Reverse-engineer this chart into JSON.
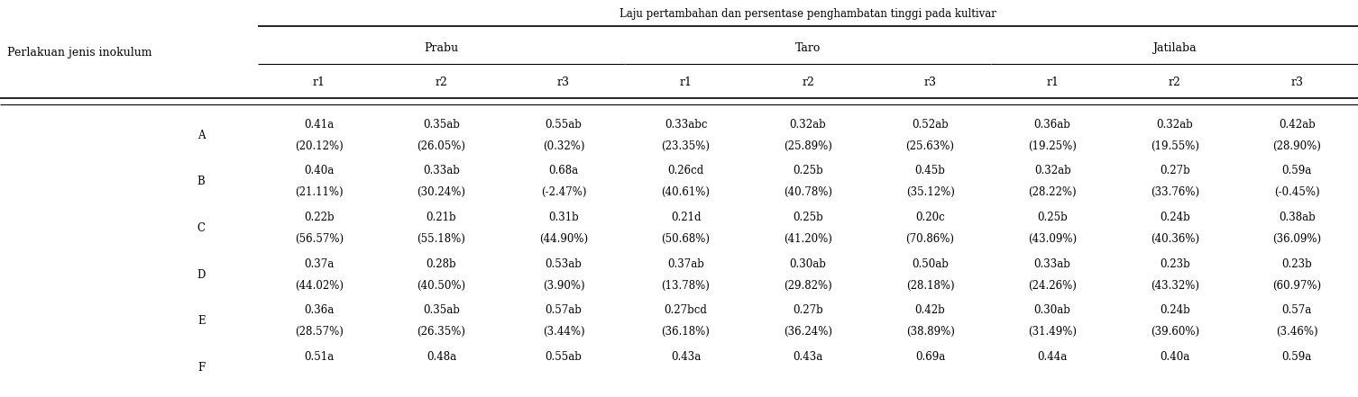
{
  "title": "Laju pertambahan dan persentase penghambatan tinggi pada kultivar",
  "col_header_row1": "Perlakuan jenis inokulum",
  "cultivars": [
    "Prabu",
    "Taro",
    "Jatilaba"
  ],
  "reps": [
    "r1",
    "r2",
    "r3"
  ],
  "treatments": [
    "A",
    "B",
    "C",
    "D",
    "E",
    "F"
  ],
  "data": {
    "A": {
      "Prabu": [
        [
          "0.41a",
          "(20.12%)"
        ],
        [
          "0.35ab",
          "(26.05%)"
        ],
        [
          "0.55ab",
          "(0.32%)"
        ]
      ],
      "Taro": [
        [
          "0.33abc",
          "(23.35%)"
        ],
        [
          "0.32ab",
          "(25.89%)"
        ],
        [
          "0.52ab",
          "(25.63%)"
        ]
      ],
      "Jatilaba": [
        [
          "0.36ab",
          "(19.25%)"
        ],
        [
          "0.32ab",
          "(19.55%)"
        ],
        [
          "0.42ab",
          "(28.90%)"
        ]
      ]
    },
    "B": {
      "Prabu": [
        [
          "0.40a",
          "(21.11%)"
        ],
        [
          "0.33ab",
          "(30.24%)"
        ],
        [
          "0.68a",
          "(-2.47%)"
        ]
      ],
      "Taro": [
        [
          "0.26cd",
          "(40.61%)"
        ],
        [
          "0.25b",
          "(40.78%)"
        ],
        [
          "0.45b",
          "(35.12%)"
        ]
      ],
      "Jatilaba": [
        [
          "0.32ab",
          "(28.22%)"
        ],
        [
          "0.27b",
          "(33.76%)"
        ],
        [
          "0.59a",
          "(-0.45%)"
        ]
      ]
    },
    "C": {
      "Prabu": [
        [
          "0.22b",
          "(56.57%)"
        ],
        [
          "0.21b",
          "(55.18%)"
        ],
        [
          "0.31b",
          "(44.90%)"
        ]
      ],
      "Taro": [
        [
          "0.21d",
          "(50.68%)"
        ],
        [
          "0.25b",
          "(41.20%)"
        ],
        [
          "0.20c",
          "(70.86%)"
        ]
      ],
      "Jatilaba": [
        [
          "0.25b",
          "(43.09%)"
        ],
        [
          "0.24b",
          "(40.36%)"
        ],
        [
          "0.38ab",
          "(36.09%)"
        ]
      ]
    },
    "D": {
      "Prabu": [
        [
          "0.37a",
          "(44.02%)"
        ],
        [
          "0.28b",
          "(40.50%)"
        ],
        [
          "0.53ab",
          "(3.90%)"
        ]
      ],
      "Taro": [
        [
          "0.37ab",
          "(13.78%)"
        ],
        [
          "0.30ab",
          "(29.82%)"
        ],
        [
          "0.50ab",
          "(28.18%)"
        ]
      ],
      "Jatilaba": [
        [
          "0.33ab",
          "(24.26%)"
        ],
        [
          "0.23b",
          "(43.32%)"
        ],
        [
          "0.23b",
          "(60.97%)"
        ]
      ]
    },
    "E": {
      "Prabu": [
        [
          "0.36a",
          "(28.57%)"
        ],
        [
          "0.35ab",
          "(26.35%)"
        ],
        [
          "0.57ab",
          "(3.44%)"
        ]
      ],
      "Taro": [
        [
          "0.27bcd",
          "(36.18%)"
        ],
        [
          "0.27b",
          "(36.24%)"
        ],
        [
          "0.42b",
          "(38.89%)"
        ]
      ],
      "Jatilaba": [
        [
          "0.30ab",
          "(31.49%)"
        ],
        [
          "0.24b",
          "(39.60%)"
        ],
        [
          "0.57a",
          "(3.46%)"
        ]
      ]
    },
    "F": {
      "Prabu": [
        [
          "0.51a",
          ""
        ],
        [
          "0.48a",
          ""
        ],
        [
          "0.55ab",
          ""
        ]
      ],
      "Taro": [
        [
          "0.43a",
          ""
        ],
        [
          "0.43a",
          ""
        ],
        [
          "0.69a",
          ""
        ]
      ],
      "Jatilaba": [
        [
          "0.44a",
          ""
        ],
        [
          "0.40a",
          ""
        ],
        [
          "0.59a",
          ""
        ]
      ]
    }
  },
  "figsize": [
    15.06,
    4.41
  ],
  "dpi": 100,
  "bg_color": "#ffffff",
  "text_color": "#000000",
  "font_family": "serif",
  "fs_title": 8.5,
  "fs_header": 9.0,
  "fs_data": 8.5,
  "fs_label": 9.0
}
